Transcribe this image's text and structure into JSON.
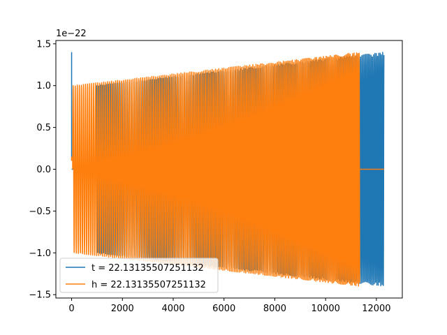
{
  "chart_data": {
    "type": "line",
    "title": "",
    "xlabel": "",
    "ylabel": "",
    "y_offset_label": "1e−22",
    "xlim": [
      -620,
      13020
    ],
    "ylim": [
      -1.54,
      1.54
    ],
    "xticks": [
      0,
      2000,
      4000,
      6000,
      8000,
      10000,
      12000
    ],
    "xtick_labels": [
      "0",
      "2000",
      "4000",
      "6000",
      "8000",
      "10000",
      "12000"
    ],
    "yticks": [
      -1.5,
      -1.0,
      -0.5,
      0.0,
      0.5,
      1.0,
      1.5
    ],
    "ytick_labels": [
      "−1.5",
      "−1.0",
      "−0.5",
      "0.0",
      "0.5",
      "1.0",
      "1.5"
    ],
    "grid": false,
    "legend_position": "lower-left",
    "series": [
      {
        "name": "t = 22.13135507251132",
        "color": "#1f77b4",
        "spike": {
          "x": 0,
          "y_min": 0.1,
          "y_max": 1.4
        },
        "flat_segments": [
          [
            0,
            960
          ]
        ],
        "chirp": {
          "x_start": 960,
          "x_end": 12300,
          "amp_start": 1.0,
          "amp_end": 1.4,
          "period_start": 82,
          "period_end": 50
        }
      },
      {
        "name": "h = 22.13135507251132",
        "color": "#ff7f0e",
        "spike": {
          "x": 0,
          "y_min": 0.1,
          "y_max": 0.15
        },
        "flat_segments": [
          [
            11350,
            12300
          ]
        ],
        "chirp": {
          "x_start": 40,
          "x_end": 11350,
          "amp_start": 1.0,
          "amp_end": 1.4,
          "period_start": 82,
          "period_end": 50
        }
      }
    ]
  }
}
